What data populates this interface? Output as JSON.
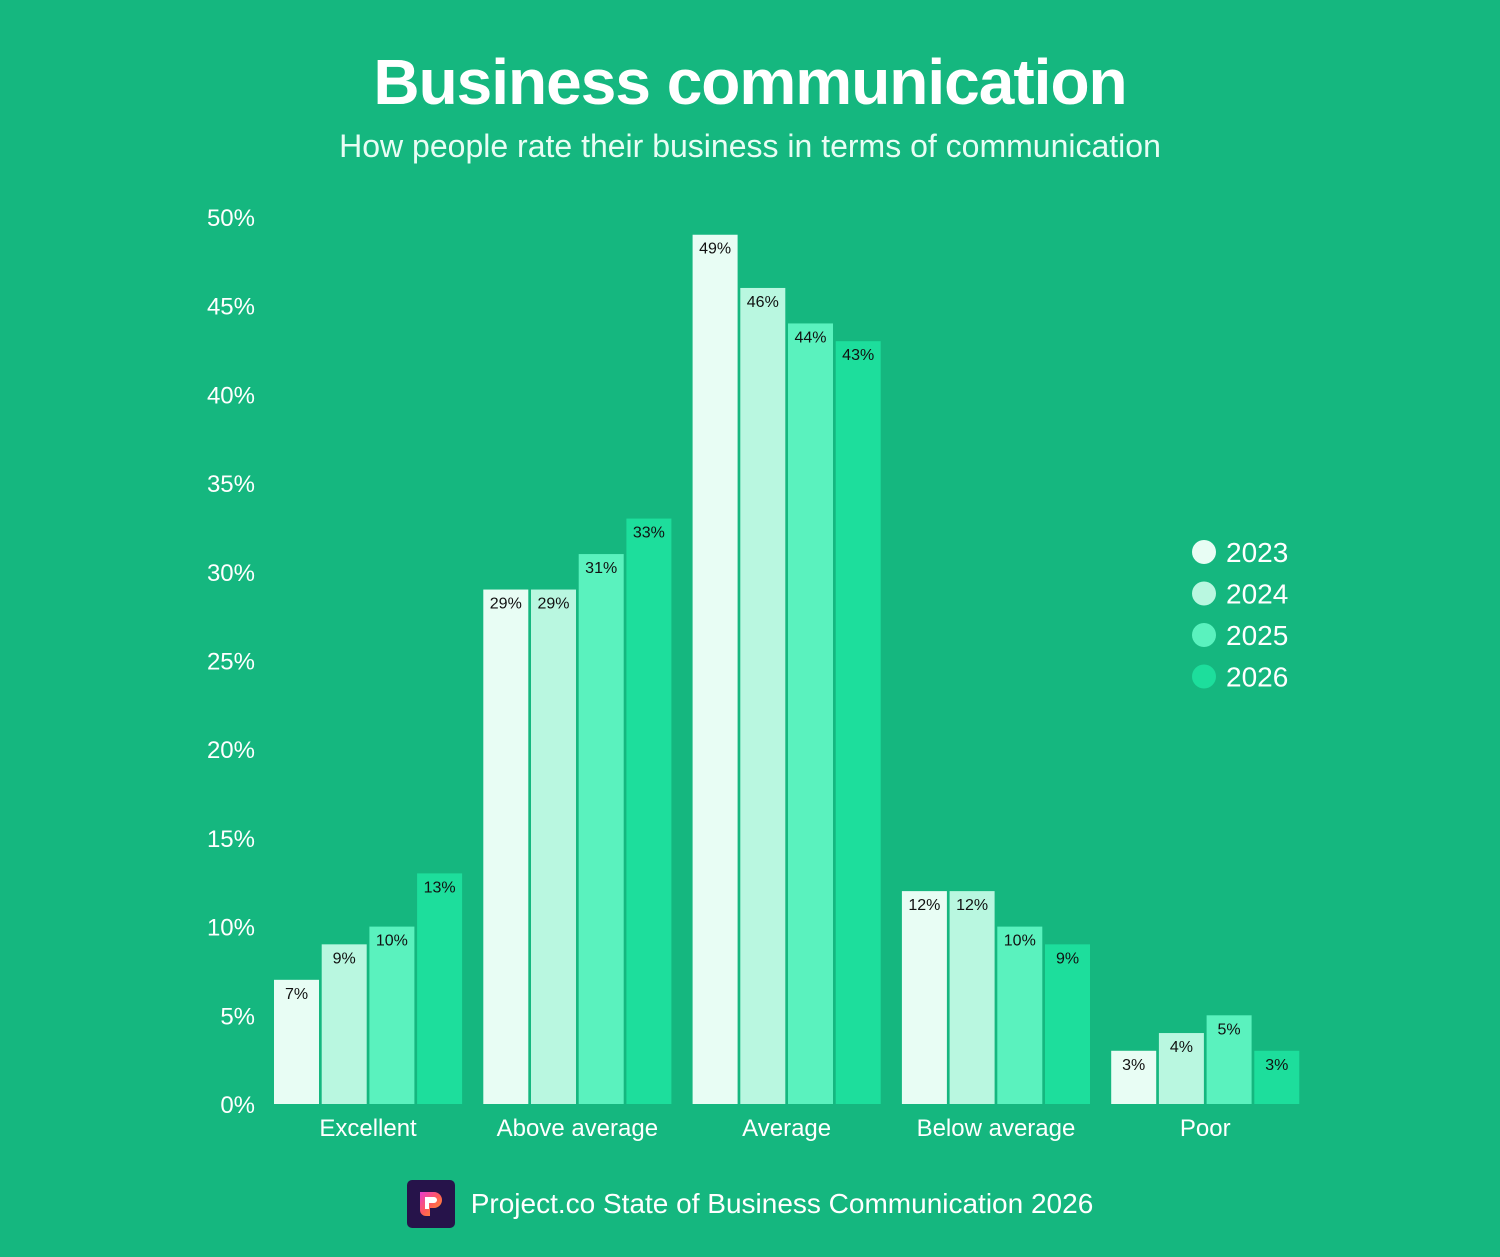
{
  "chart_data": {
    "type": "bar",
    "title": "Business communication",
    "subtitle": "How people rate their business in terms of communication",
    "categories": [
      "Excellent",
      "Above average",
      "Average",
      "Below average",
      "Poor"
    ],
    "series": [
      {
        "name": "2023",
        "color": "#E8FDF4",
        "values": [
          7,
          29,
          49,
          12,
          3
        ]
      },
      {
        "name": "2024",
        "color": "#B9F7E0",
        "values": [
          9,
          29,
          46,
          12,
          4
        ]
      },
      {
        "name": "2025",
        "color": "#5AF2BE",
        "values": [
          10,
          31,
          44,
          10,
          5
        ]
      },
      {
        "name": "2026",
        "color": "#1DDE9C",
        "values": [
          13,
          33,
          43,
          9,
          3
        ]
      }
    ],
    "yticks": [
      "0%",
      "5%",
      "10%",
      "15%",
      "20%",
      "25%",
      "30%",
      "35%",
      "40%",
      "45%",
      "50%"
    ],
    "ylim": [
      0,
      50
    ],
    "xlabel": "",
    "ylabel": "",
    "legend_position": "right",
    "grid": false,
    "value_suffix": "%"
  },
  "footer": {
    "source": "Project.co State of Business Communication 2026"
  },
  "colors": {
    "background": "#15B77F"
  }
}
